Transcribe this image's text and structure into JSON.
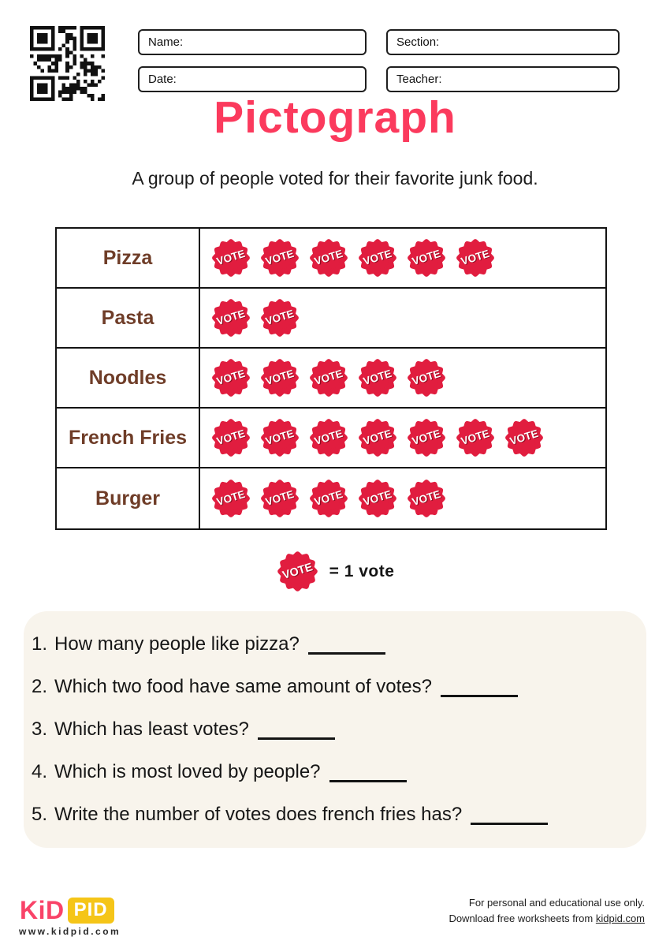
{
  "header": {
    "qr": "qr-code",
    "fields": [
      {
        "id": "name",
        "label": "Name:",
        "value": ""
      },
      {
        "id": "section",
        "label": "Section:",
        "value": ""
      },
      {
        "id": "date",
        "label": "Date:",
        "value": ""
      },
      {
        "id": "teacher",
        "label": "Teacher:",
        "value": ""
      }
    ]
  },
  "title": "Pictograph",
  "subtitle": "A group of people voted for their favorite junk food.",
  "chart_data": {
    "type": "pictograph",
    "categories": [
      "Pizza",
      "Pasta",
      "Noodles",
      "French Fries",
      "Burger"
    ],
    "values": [
      6,
      2,
      5,
      7,
      5
    ],
    "icon": "vote-badge",
    "icon_text": "VOTE",
    "unit_per_icon": 1,
    "legend": "= 1 vote",
    "title": "Pictograph",
    "xlabel": "",
    "ylabel": ""
  },
  "questions": [
    {
      "number": "1.",
      "text": "How many people like pizza?"
    },
    {
      "number": "2.",
      "text": "Which two food have same amount of votes?"
    },
    {
      "number": "3.",
      "text": "Which has least votes?"
    },
    {
      "number": "4.",
      "text": "Which is most loved by people?"
    },
    {
      "number": "5.",
      "text": "Write the number of votes does french fries has?"
    }
  ],
  "footer": {
    "logo_part1": "KiD",
    "logo_part2": "PID",
    "website": "www.kidpid.com",
    "note_line1": "For personal and educational use only.",
    "note_line2_prefix": "Download free worksheets from ",
    "note_line2_link": "kidpid.com"
  },
  "colors": {
    "title_pink": "#FB3A5D",
    "badge_red": "#E11D3F",
    "badge_shadow": "#8F1023",
    "label_brown": "#6F3D28",
    "qbox_bg": "#F8F4EC",
    "logo_pink": "#F94368",
    "logo_yellow": "#F5C518",
    "ink": "#161616"
  }
}
